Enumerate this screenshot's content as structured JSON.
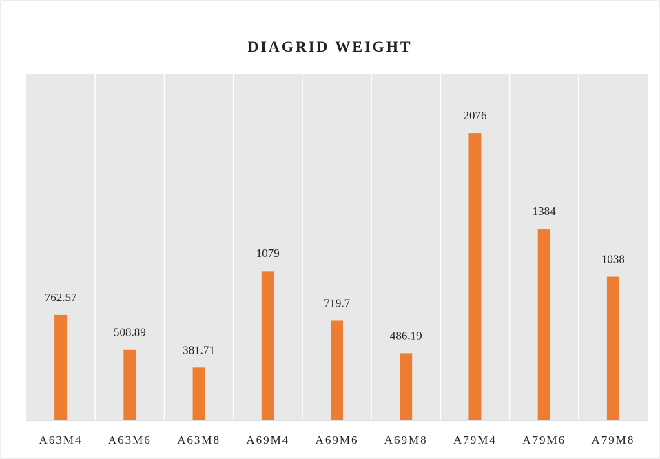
{
  "chart_data": {
    "type": "bar",
    "title": "DIAGRID WEIGHT",
    "categories": [
      "A63M4",
      "A63M6",
      "A63M8",
      "A69M4",
      "A69M6",
      "A69M8",
      "A79M4",
      "A79M6",
      "A79M8"
    ],
    "values": [
      762.57,
      508.89,
      381.71,
      1079,
      719.7,
      486.19,
      2076,
      1384,
      1038
    ],
    "color": "#ed7d31",
    "ylim": [
      0,
      2500
    ],
    "grid": false
  }
}
